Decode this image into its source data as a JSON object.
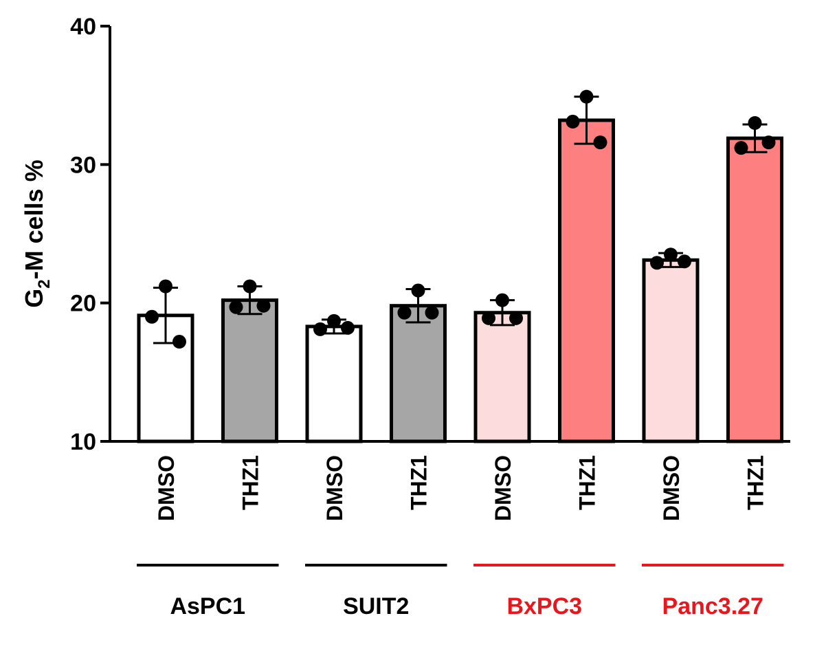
{
  "chart_data": {
    "type": "bar",
    "title": "",
    "ylabel": {
      "base": "G",
      "sub": "2",
      "rest": "-M cells %"
    },
    "xlabel": "",
    "ylim": [
      10,
      40
    ],
    "yticks": [
      10,
      20,
      30,
      40
    ],
    "grid": false,
    "categories": [
      "DMSO",
      "THZ1",
      "DMSO",
      "THZ1",
      "DMSO",
      "THZ1",
      "DMSO",
      "THZ1"
    ],
    "values": [
      19.1,
      20.2,
      18.3,
      19.8,
      19.3,
      33.2,
      23.1,
      31.9
    ],
    "error": [
      2.0,
      1.0,
      0.5,
      1.2,
      0.9,
      1.7,
      0.5,
      1.0
    ],
    "points": [
      [
        21.2,
        19.0,
        17.2
      ],
      [
        21.2,
        19.7,
        19.8
      ],
      [
        18.7,
        18.1,
        18.2
      ],
      [
        20.9,
        19.3,
        19.3
      ],
      [
        20.2,
        18.9,
        18.9
      ],
      [
        34.9,
        33.1,
        31.6
      ],
      [
        23.5,
        22.9,
        23.0
      ],
      [
        33.0,
        31.2,
        31.6
      ]
    ],
    "bar_colors": [
      "#ffffff",
      "#a6a6a6",
      "#ffffff",
      "#a6a6a6",
      "#fcdcdc",
      "#fd7f7f",
      "#fcdcdc",
      "#fd7f7f"
    ],
    "groups": [
      {
        "label": "AsPC1",
        "color": "#000000",
        "bars": [
          0,
          1
        ]
      },
      {
        "label": "SUIT2",
        "color": "#000000",
        "bars": [
          2,
          3
        ]
      },
      {
        "label": "BxPC3",
        "color": "#e8171e",
        "bars": [
          4,
          5
        ]
      },
      {
        "label": "Panc3.27",
        "color": "#e8171e",
        "bars": [
          6,
          7
        ]
      }
    ]
  }
}
